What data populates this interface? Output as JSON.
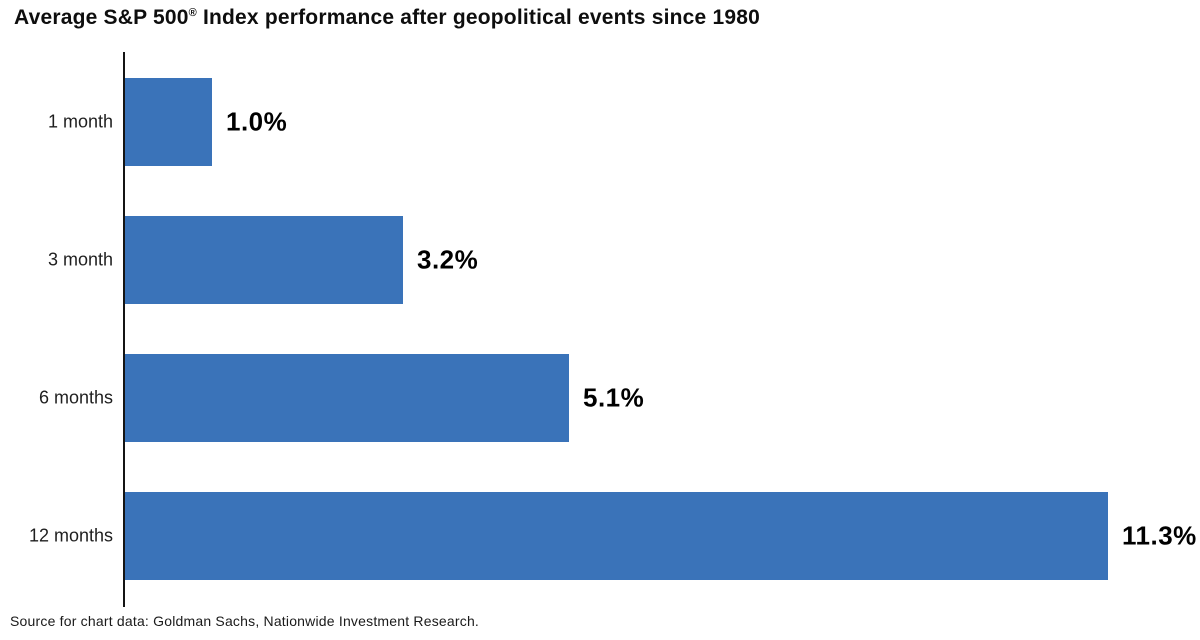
{
  "title": {
    "part1": "Average S&P 500",
    "registered": "®",
    "part2": " Index performance after geopolitical events since 1980"
  },
  "source_note": "Source for chart data: Goldman Sachs, Nationwide Investment Research.",
  "colors": {
    "bar": "#3A73B9",
    "axis": "#141414",
    "title_text": "#0e0e0e",
    "category_text": "#1f1f1f",
    "value_text": "#000000"
  },
  "chart_data": {
    "type": "bar",
    "orientation": "horizontal",
    "title": "Average S&P 500® Index performance after geopolitical events since 1980",
    "categories": [
      "1 month",
      "3 month",
      "6 months",
      "12 months"
    ],
    "values": [
      1.0,
      3.2,
      5.1,
      11.3
    ],
    "value_labels": [
      "1.0%",
      "3.2%",
      "5.1%",
      "11.3%"
    ],
    "xlabel": "",
    "ylabel": "",
    "xlim": [
      0,
      12.4
    ],
    "grid": false,
    "legend": false,
    "annotation": "Source for chart data: Goldman Sachs, Nationwide Investment Research."
  }
}
